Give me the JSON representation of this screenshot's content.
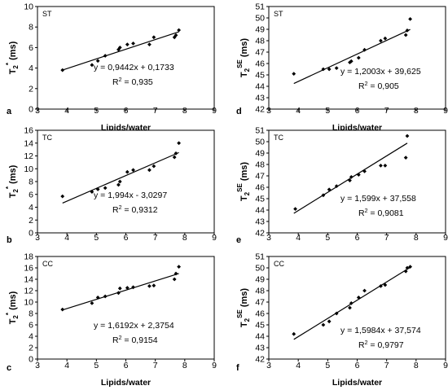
{
  "chart_data": [
    {
      "type": "scatter",
      "letter": "a",
      "tag": "ST",
      "ylabel": "T2* (ms)",
      "ylabel_main": "T",
      "ylabel_sub": "2",
      "ylabel_sup": "*",
      "ylabel_unit": "(ms)",
      "xlabel": "Lipids/water",
      "xlim": [
        3,
        9
      ],
      "xticks": [
        "3",
        "4",
        "5",
        "6",
        "7",
        "8",
        "9"
      ],
      "ylim": [
        0,
        10
      ],
      "yticks": [
        "0",
        "2",
        "4",
        "6",
        "8",
        "10"
      ],
      "points": [
        [
          3.85,
          3.8
        ],
        [
          4.85,
          4.3
        ],
        [
          5.05,
          4.7
        ],
        [
          5.3,
          5.2
        ],
        [
          5.75,
          5.8
        ],
        [
          5.8,
          6.0
        ],
        [
          6.05,
          6.3
        ],
        [
          6.25,
          6.4
        ],
        [
          6.8,
          6.3
        ],
        [
          6.95,
          7.0
        ],
        [
          7.65,
          7.0
        ],
        [
          7.7,
          7.2
        ],
        [
          7.8,
          7.7
        ]
      ],
      "fit": {
        "slope": 0.9442,
        "intercept": 0.1733,
        "x0": 3.85,
        "x1": 7.8
      },
      "equation": "y = 0,9442x + 0,1733",
      "r2_value": "= 0,935"
    },
    {
      "type": "scatter",
      "letter": "b",
      "tag": "TC",
      "ylabel": "T2* (ms)",
      "ylabel_main": "T",
      "ylabel_sub": "2",
      "ylabel_sup": "*",
      "ylabel_unit": "(ms)",
      "xlabel": "Lipids/water",
      "xlim": [
        3,
        9
      ],
      "xticks": [
        "3",
        "4",
        "5",
        "6",
        "7",
        "8",
        "9"
      ],
      "ylim": [
        0,
        16
      ],
      "yticks": [
        "0",
        "2",
        "4",
        "6",
        "8",
        "10",
        "12",
        "14",
        "16"
      ],
      "points": [
        [
          3.85,
          5.7
        ],
        [
          4.85,
          6.4
        ],
        [
          5.05,
          6.8
        ],
        [
          5.3,
          7.0
        ],
        [
          5.75,
          7.5
        ],
        [
          5.8,
          8.0
        ],
        [
          6.05,
          9.5
        ],
        [
          6.25,
          9.8
        ],
        [
          6.8,
          9.8
        ],
        [
          6.95,
          10.4
        ],
        [
          7.65,
          11.8
        ],
        [
          7.7,
          12.4
        ],
        [
          7.8,
          14.0
        ]
      ],
      "fit": {
        "slope": 1.994,
        "intercept": -3.0297,
        "x0": 3.85,
        "x1": 7.8
      },
      "equation": "y = 1,994x - 3,0297",
      "r2_value": "= 0,9312"
    },
    {
      "type": "scatter",
      "letter": "c",
      "tag": "CC",
      "ylabel": "T2* (ms)",
      "ylabel_main": "T",
      "ylabel_sub": "2",
      "ylabel_sup": "*",
      "ylabel_unit": "(ms)",
      "xlabel": "Lipids/water",
      "xlim": [
        3,
        9
      ],
      "xticks": [
        "3",
        "4",
        "5",
        "6",
        "7",
        "8",
        "9"
      ],
      "ylim": [
        0,
        18
      ],
      "yticks": [
        "0",
        "2",
        "4",
        "6",
        "8",
        "10",
        "12",
        "14",
        "16",
        "18"
      ],
      "points": [
        [
          3.85,
          8.7
        ],
        [
          4.85,
          9.8
        ],
        [
          5.05,
          10.8
        ],
        [
          5.3,
          11.0
        ],
        [
          5.75,
          11.6
        ],
        [
          5.8,
          12.4
        ],
        [
          6.05,
          12.5
        ],
        [
          6.25,
          12.6
        ],
        [
          6.8,
          12.8
        ],
        [
          6.95,
          12.9
        ],
        [
          7.65,
          14.0
        ],
        [
          7.7,
          15.0
        ],
        [
          7.8,
          16.2
        ]
      ],
      "fit": {
        "slope": 1.6192,
        "intercept": 2.3754,
        "x0": 3.85,
        "x1": 7.8
      },
      "equation": "y = 1,6192x + 2,3754",
      "r2_value": "= 0,9154"
    },
    {
      "type": "scatter",
      "letter": "d",
      "tag": "ST",
      "ylabel": "T2SE (ms)",
      "ylabel_main": "T",
      "ylabel_sub": "2",
      "ylabel_sup": "SE",
      "ylabel_unit": "(ms)",
      "xlabel": "Lipids/water",
      "xlim": [
        3,
        9
      ],
      "xticks": [
        "3",
        "4",
        "5",
        "6",
        "7",
        "8",
        "9"
      ],
      "ylim": [
        42,
        51
      ],
      "yticks": [
        "42",
        "43",
        "44",
        "45",
        "46",
        "47",
        "48",
        "49",
        "50",
        "51"
      ],
      "points": [
        [
          3.85,
          45.1
        ],
        [
          4.85,
          45.5
        ],
        [
          5.05,
          45.5
        ],
        [
          5.3,
          45.6
        ],
        [
          5.75,
          46.1
        ],
        [
          5.8,
          46.2
        ],
        [
          6.05,
          46.5
        ],
        [
          6.25,
          47.2
        ],
        [
          6.8,
          48.0
        ],
        [
          6.95,
          48.2
        ],
        [
          7.65,
          48.5
        ],
        [
          7.7,
          48.9
        ],
        [
          7.8,
          49.9
        ]
      ],
      "fit": {
        "slope": 1.2003,
        "intercept": 39.625,
        "x0": 3.85,
        "x1": 7.8
      },
      "equation": "y = 1,2003x + 39,625",
      "r2_value": "= 0,905"
    },
    {
      "type": "scatter",
      "letter": "e",
      "tag": "TC",
      "ylabel": "T2SE (ms)",
      "ylabel_main": "T",
      "ylabel_sub": "2",
      "ylabel_sup": "SE",
      "ylabel_unit": "(ms)",
      "xlabel": "Lipids/water",
      "xlim": [
        3,
        9
      ],
      "xticks": [
        "3",
        "4",
        "5",
        "6",
        "7",
        "8",
        "9"
      ],
      "ylim": [
        42,
        51
      ],
      "yticks": [
        "42",
        "43",
        "44",
        "45",
        "46",
        "47",
        "48",
        "49",
        "50",
        "51"
      ],
      "points": [
        [
          3.9,
          44.1
        ],
        [
          4.85,
          45.3
        ],
        [
          5.05,
          45.8
        ],
        [
          5.3,
          46.1
        ],
        [
          5.75,
          46.6
        ],
        [
          5.8,
          46.9
        ],
        [
          6.05,
          47.1
        ],
        [
          6.25,
          47.4
        ],
        [
          6.8,
          47.9
        ],
        [
          6.95,
          47.9
        ],
        [
          7.65,
          48.6
        ],
        [
          7.7,
          50.5
        ]
      ],
      "fit": {
        "slope": 1.599,
        "intercept": 37.558,
        "x0": 3.85,
        "x1": 7.7
      },
      "equation": "y = 1,599x + 37,558",
      "r2_value": "= 0,9081"
    },
    {
      "type": "scatter",
      "letter": "f",
      "tag": "CC",
      "ylabel": "T2SE (ms)",
      "ylabel_main": "T",
      "ylabel_sub": "2",
      "ylabel_sup": "SE",
      "ylabel_unit": "(ms)",
      "xlabel": "Lipids/water",
      "xlim": [
        3,
        9
      ],
      "xticks": [
        "3",
        "4",
        "5",
        "6",
        "7",
        "8",
        "9"
      ],
      "ylim": [
        42,
        51
      ],
      "yticks": [
        "42",
        "43",
        "44",
        "45",
        "46",
        "47",
        "48",
        "49",
        "50",
        "51"
      ],
      "points": [
        [
          3.85,
          44.2
        ],
        [
          4.85,
          45.0
        ],
        [
          5.05,
          45.3
        ],
        [
          5.3,
          46.0
        ],
        [
          5.75,
          46.5
        ],
        [
          5.8,
          46.9
        ],
        [
          6.05,
          47.4
        ],
        [
          6.25,
          48.0
        ],
        [
          6.8,
          48.4
        ],
        [
          6.95,
          48.5
        ],
        [
          7.65,
          49.7
        ],
        [
          7.7,
          50.0
        ],
        [
          7.8,
          50.1
        ]
      ],
      "fit": {
        "slope": 1.5984,
        "intercept": 37.574,
        "x0": 3.85,
        "x1": 7.8
      },
      "equation": "y = 1,5984x + 37,574",
      "r2_value": "= 0,9797"
    }
  ]
}
